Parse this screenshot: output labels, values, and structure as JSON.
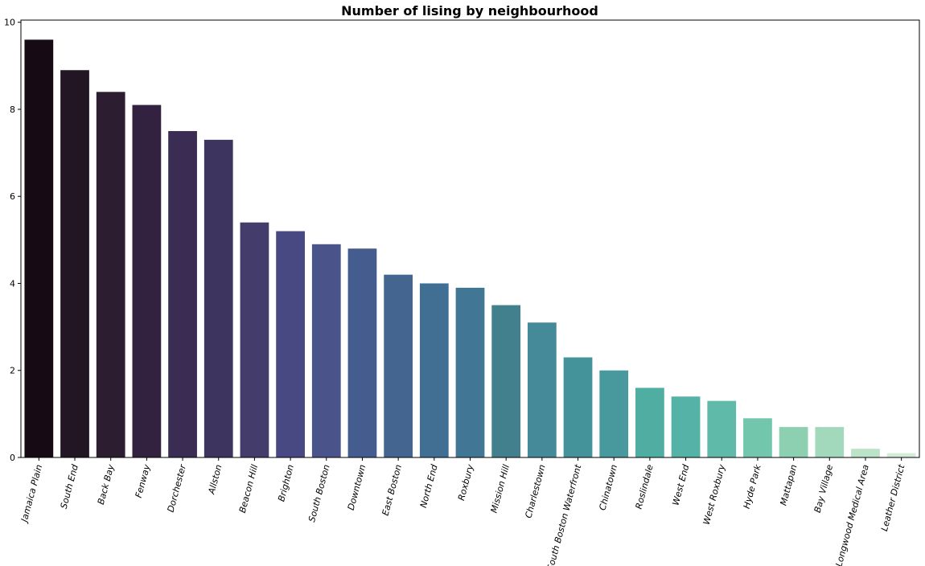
{
  "chart_data": {
    "type": "bar",
    "title": "Number of lising by neighbourhood",
    "xlabel": "",
    "ylabel": "",
    "ylim": [
      0,
      10.05
    ],
    "yticks": [
      0,
      2,
      4,
      6,
      8,
      10
    ],
    "grid": false,
    "legend": "none",
    "categories": [
      "Jamaica Plain",
      "South End",
      "Back Bay",
      "Fenway",
      "Dorchester",
      "Allston",
      "Beacon Hill",
      "Brighton",
      "South Boston",
      "Downtown",
      "East Boston",
      "North End",
      "Roxbury",
      "Mission Hill",
      "Charlestown",
      "South Boston Waterfront",
      "Chinatown",
      "Roslindale",
      "West End",
      "West Roxbury",
      "Hyde Park",
      "Mattapan",
      "Bay Village",
      "Longwood Medical Area",
      "Leather District"
    ],
    "values": [
      9.6,
      8.9,
      8.4,
      8.1,
      7.5,
      7.3,
      5.4,
      5.2,
      4.9,
      4.8,
      4.2,
      4.0,
      3.9,
      3.5,
      3.1,
      2.3,
      2.0,
      1.6,
      1.4,
      1.3,
      0.9,
      0.7,
      0.7,
      0.2,
      0.1
    ],
    "colors": [
      "#160b14",
      "#221625",
      "#2c1d31",
      "#32213f",
      "#3a2c52",
      "#3d3560",
      "#443d6b",
      "#484882",
      "#4a548b",
      "#455c8e",
      "#43658f",
      "#416e93",
      "#417795",
      "#42808d",
      "#448a99",
      "#45939a",
      "#48999d",
      "#4fada2",
      "#55b2a6",
      "#60baaa",
      "#72c6ab",
      "#8dd0b1",
      "#a2d9bd",
      "#bae3c7",
      "#d6ecdb"
    ]
  }
}
